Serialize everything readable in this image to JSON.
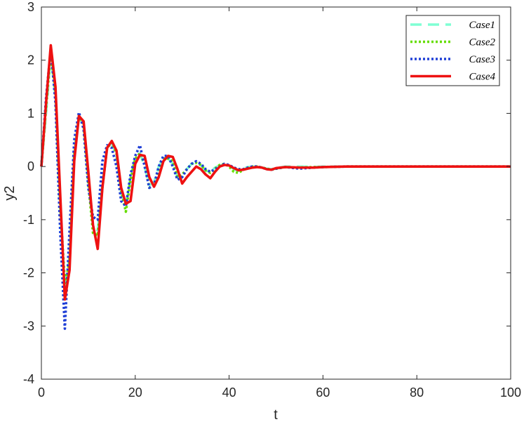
{
  "chart_data": {
    "type": "line",
    "title": "",
    "xlabel": "t",
    "ylabel": "y2",
    "xlim": [
      0,
      100
    ],
    "ylim": [
      -4,
      3
    ],
    "xticks": [
      "0",
      "20",
      "40",
      "60",
      "80",
      "100"
    ],
    "yticks": [
      "-4",
      "-3",
      "-2",
      "-1",
      "0",
      "1",
      "2",
      "3"
    ],
    "grid": false,
    "legend_position": "top-right",
    "series": [
      {
        "name": "Case1",
        "color": "#7fffd4",
        "style": "dashed",
        "x": [
          0,
          1,
          2,
          3,
          4,
          5,
          6,
          7,
          8,
          9,
          10,
          11,
          12,
          13,
          14,
          15,
          16,
          17,
          18,
          19,
          20,
          21,
          22,
          23,
          24,
          25,
          26,
          27,
          28,
          29,
          30,
          31,
          32,
          33,
          34,
          35,
          36,
          37,
          38,
          39,
          40,
          41,
          42,
          43,
          44,
          45,
          46,
          47,
          48,
          49,
          50,
          52,
          55,
          58,
          60,
          65,
          70,
          80,
          90,
          100
        ],
        "y": [
          0,
          1.0,
          2.1,
          1.3,
          -0.8,
          -2.3,
          -1.7,
          0.3,
          0.9,
          0.75,
          -0.2,
          -1.15,
          -1.2,
          -0.3,
          0.35,
          0.45,
          0.2,
          -0.5,
          -0.75,
          -0.2,
          0.15,
          0.25,
          0.0,
          -0.35,
          -0.3,
          0.0,
          0.15,
          0.15,
          0.05,
          -0.2,
          -0.2,
          -0.05,
          0.05,
          0.08,
          0.02,
          -0.08,
          -0.1,
          -0.02,
          0.02,
          0.03,
          0.02,
          -0.05,
          -0.08,
          -0.04,
          -0.01,
          0.0,
          -0.01,
          -0.02,
          -0.04,
          -0.05,
          -0.03,
          0.0,
          0.0,
          -0.01,
          0.0,
          0.0,
          0.0,
          0.0,
          0.0,
          0.0
        ]
      },
      {
        "name": "Case2",
        "color": "#66dd00",
        "style": "dotted",
        "x": [
          0,
          1,
          2,
          3,
          4,
          5,
          6,
          7,
          8,
          9,
          10,
          11,
          12,
          13,
          14,
          15,
          16,
          17,
          18,
          19,
          20,
          21,
          22,
          23,
          24,
          25,
          26,
          27,
          28,
          29,
          30,
          31,
          32,
          33,
          34,
          35,
          36,
          37,
          38,
          39,
          40,
          41,
          42,
          43,
          44,
          45,
          46,
          47,
          48,
          49,
          50,
          52,
          55,
          58,
          60,
          65,
          70,
          80,
          90,
          100
        ],
        "y": [
          0,
          1.1,
          2.15,
          1.4,
          -0.7,
          -2.2,
          -1.8,
          0.2,
          0.95,
          0.8,
          -0.3,
          -1.25,
          -1.3,
          -0.4,
          0.35,
          0.45,
          0.25,
          -0.45,
          -0.85,
          -0.25,
          0.15,
          0.25,
          0.05,
          -0.4,
          -0.35,
          -0.05,
          0.15,
          0.15,
          0.1,
          -0.2,
          -0.15,
          -0.05,
          0.05,
          0.07,
          0.03,
          -0.07,
          -0.12,
          -0.04,
          0.03,
          0.05,
          0.0,
          -0.1,
          -0.12,
          -0.06,
          -0.03,
          0.0,
          0.0,
          -0.02,
          -0.04,
          -0.06,
          -0.04,
          -0.01,
          -0.02,
          -0.01,
          -0.01,
          0.0,
          0.0,
          0.0,
          0.0,
          0.0
        ]
      },
      {
        "name": "Case3",
        "color": "#1f3fd6",
        "style": "dotted",
        "x": [
          0,
          1,
          2,
          3,
          4,
          5,
          6,
          7,
          8,
          9,
          10,
          11,
          12,
          13,
          14,
          15,
          16,
          17,
          18,
          19,
          20,
          21,
          22,
          23,
          24,
          25,
          26,
          27,
          28,
          29,
          30,
          31,
          32,
          33,
          34,
          35,
          36,
          37,
          38,
          39,
          40,
          41,
          42,
          43,
          44,
          45,
          46,
          47,
          48,
          49,
          50,
          52,
          55,
          58,
          60,
          65,
          70,
          80,
          90,
          100
        ],
        "y": [
          0,
          1.3,
          2.2,
          1.2,
          -1.2,
          -3.05,
          -1.2,
          0.5,
          1.02,
          0.7,
          -0.4,
          -0.95,
          -1.0,
          0.1,
          0.4,
          0.35,
          0.0,
          -0.65,
          -0.75,
          -0.15,
          0.2,
          0.4,
          0.0,
          -0.4,
          -0.35,
          0.0,
          0.2,
          0.2,
          0.0,
          -0.25,
          -0.2,
          -0.05,
          0.05,
          0.1,
          0.05,
          -0.05,
          -0.1,
          -0.05,
          0.0,
          0.05,
          0.03,
          -0.02,
          -0.05,
          -0.05,
          -0.02,
          0.0,
          0.0,
          -0.02,
          -0.05,
          -0.06,
          -0.04,
          -0.01,
          -0.04,
          -0.02,
          -0.01,
          0.0,
          0.0,
          0.0,
          0.0,
          0.0
        ]
      },
      {
        "name": "Case4",
        "color": "#ee1111",
        "style": "solid",
        "x": [
          0,
          1,
          2,
          3,
          4,
          5,
          6,
          7,
          8,
          9,
          10,
          11,
          12,
          13,
          14,
          15,
          16,
          17,
          18,
          19,
          20,
          21,
          22,
          23,
          24,
          25,
          26,
          27,
          28,
          29,
          30,
          31,
          32,
          33,
          34,
          35,
          36,
          37,
          38,
          39,
          40,
          41,
          42,
          43,
          44,
          45,
          46,
          47,
          48,
          49,
          50,
          52,
          55,
          58,
          60,
          65,
          70,
          80,
          90,
          100
        ],
        "y": [
          0,
          1.2,
          2.28,
          1.5,
          -0.5,
          -2.5,
          -1.95,
          0.1,
          0.95,
          0.85,
          -0.1,
          -1.1,
          -1.55,
          -0.4,
          0.35,
          0.48,
          0.3,
          -0.4,
          -0.7,
          -0.65,
          0.05,
          0.22,
          0.2,
          -0.2,
          -0.38,
          -0.2,
          0.1,
          0.2,
          0.18,
          -0.05,
          -0.32,
          -0.2,
          -0.1,
          0.0,
          -0.05,
          -0.15,
          -0.22,
          -0.1,
          0.0,
          0.03,
          0.02,
          -0.03,
          -0.07,
          -0.06,
          -0.04,
          -0.02,
          -0.01,
          -0.02,
          -0.05,
          -0.06,
          -0.03,
          -0.01,
          -0.02,
          -0.02,
          -0.01,
          0.0,
          0.0,
          0.0,
          0.0,
          0.0
        ]
      }
    ]
  }
}
